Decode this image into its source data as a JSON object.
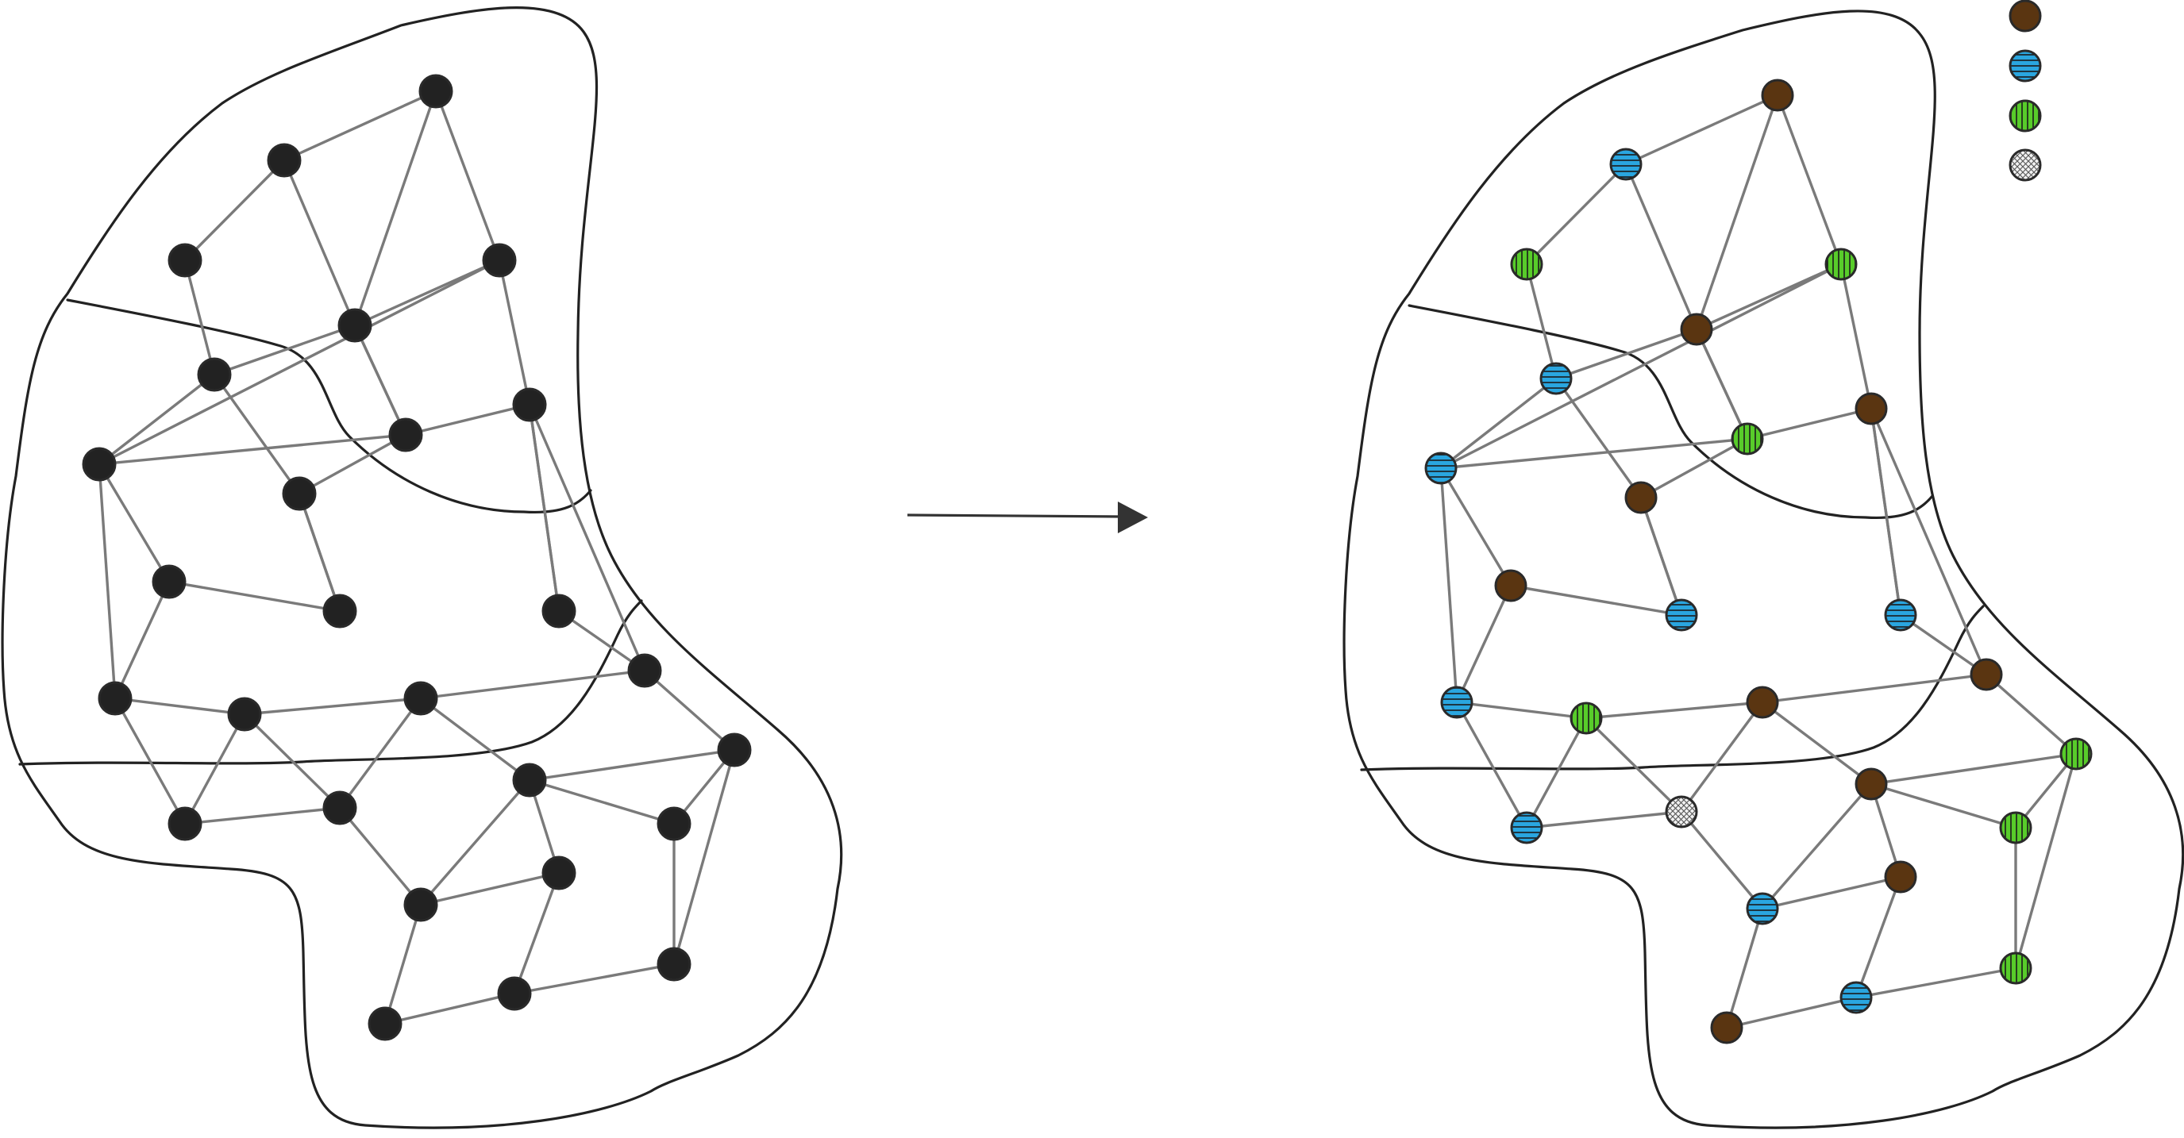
{
  "diagram": {
    "type": "graph-coloring",
    "transformation": "right-arrow",
    "vertex_count": 33,
    "edge_count": 50,
    "colors": {
      "uncolored": "#222222",
      "brown": "#5a3511",
      "blue": "#2aa6e0",
      "green": "#58cc2a",
      "pattern": "#f2f2f2",
      "edge": "#7a7a7a",
      "outline": "#222222"
    },
    "legend": [
      {
        "key": "brown",
        "pattern": "solid"
      },
      {
        "key": "blue",
        "pattern": "horizontal-stripes"
      },
      {
        "key": "green",
        "pattern": "vertical-stripes"
      },
      {
        "key": "pattern",
        "pattern": "crosshatch"
      }
    ],
    "vertex_colors": [
      "brown",
      "blue",
      "green",
      "green",
      "brown",
      "blue",
      "blue",
      "brown",
      "green",
      "brown",
      "brown",
      "blue",
      "blue",
      "blue",
      "green",
      "brown",
      "brown",
      "brown",
      "green",
      "blue",
      "pattern",
      "green",
      "blue",
      "brown",
      "brown",
      "blue",
      "green",
      "brown",
      "brown",
      "blue",
      "green",
      "pattern",
      "brown"
    ]
  }
}
